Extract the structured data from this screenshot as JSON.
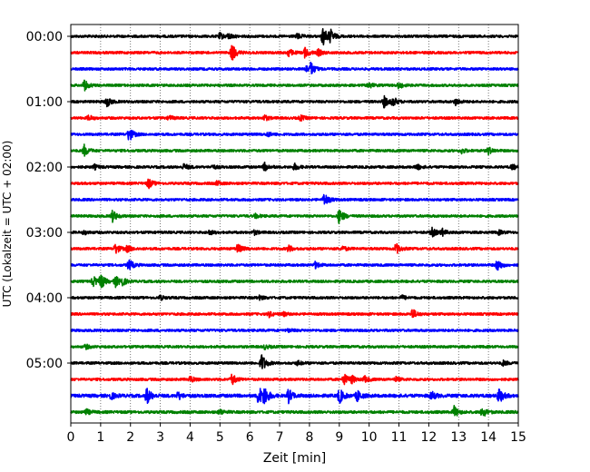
{
  "chart_data": {
    "type": "line",
    "title": "",
    "xlabel": "Zeit  [min]",
    "ylabel": "UTC (Lokalzeit = UTC + 02:00)",
    "xlim": [
      0,
      15
    ],
    "x_ticks": [
      0,
      1,
      2,
      3,
      4,
      5,
      6,
      7,
      8,
      9,
      10,
      11,
      12,
      13,
      14,
      15
    ],
    "x_tick_labels": [
      "0",
      "1",
      "2",
      "3",
      "4",
      "5",
      "6",
      "7",
      "8",
      "9",
      "10",
      "11",
      "12",
      "13",
      "14",
      "15"
    ],
    "y_tick_labels": [
      "00:00",
      "01:00",
      "02:00",
      "03:00",
      "04:00",
      "05:00"
    ],
    "y_tick_rows": [
      0,
      4,
      8,
      12,
      16,
      20
    ],
    "grid": "vertical dotted at each minute",
    "trace_colors": [
      "#000000",
      "#ff0000",
      "#0000ff",
      "#008000"
    ],
    "rows": [
      {
        "start": "00:00",
        "amp": 1.0,
        "events": [
          [
            5.0,
            0.6
          ],
          [
            5.3,
            0.5
          ],
          [
            7.6,
            0.5
          ],
          [
            8.45,
            1.9
          ],
          [
            8.7,
            1.2
          ]
        ]
      },
      {
        "start": "00:15",
        "amp": 1.0,
        "events": [
          [
            5.4,
            1.7
          ],
          [
            7.3,
            0.8
          ],
          [
            7.85,
            1.0
          ],
          [
            8.3,
            0.6
          ]
        ]
      },
      {
        "start": "00:30",
        "amp": 1.0,
        "events": [
          [
            7.9,
            0.6
          ],
          [
            8.05,
            1.1
          ]
        ]
      },
      {
        "start": "00:45",
        "amp": 1.0,
        "events": [
          [
            0.45,
            1.0
          ],
          [
            10.0,
            0.5
          ],
          [
            11.0,
            0.6
          ]
        ]
      },
      {
        "start": "01:00",
        "amp": 1.0,
        "events": [
          [
            1.2,
            1.0
          ],
          [
            10.5,
            1.1
          ],
          [
            10.8,
            0.9
          ],
          [
            12.9,
            0.6
          ]
        ]
      },
      {
        "start": "01:15",
        "amp": 1.0,
        "events": [
          [
            0.6,
            0.5
          ],
          [
            3.3,
            0.4
          ],
          [
            6.5,
            0.5
          ],
          [
            7.7,
            0.5
          ]
        ]
      },
      {
        "start": "01:30",
        "amp": 1.0,
        "events": [
          [
            1.95,
            1.4
          ],
          [
            6.6,
            0.4
          ]
        ]
      },
      {
        "start": "01:45",
        "amp": 1.0,
        "events": [
          [
            0.45,
            1.1
          ],
          [
            13.1,
            0.5
          ],
          [
            14.0,
            0.7
          ]
        ]
      },
      {
        "start": "02:00",
        "amp": 1.0,
        "events": [
          [
            0.8,
            0.4
          ],
          [
            3.8,
            0.6
          ],
          [
            4.75,
            0.4
          ],
          [
            6.5,
            0.8
          ],
          [
            7.5,
            0.6
          ],
          [
            11.6,
            0.5
          ],
          [
            14.8,
            0.5
          ]
        ]
      },
      {
        "start": "02:15",
        "amp": 1.0,
        "events": [
          [
            2.6,
            1.0
          ],
          [
            4.9,
            0.4
          ]
        ]
      },
      {
        "start": "02:30",
        "amp": 1.0,
        "events": [
          [
            8.5,
            1.3
          ]
        ]
      },
      {
        "start": "02:45",
        "amp": 1.0,
        "events": [
          [
            1.4,
            1.1
          ],
          [
            6.2,
            0.4
          ],
          [
            9.0,
            1.5
          ]
        ]
      },
      {
        "start": "03:00",
        "amp": 1.0,
        "events": [
          [
            0.45,
            0.4
          ],
          [
            4.65,
            0.4
          ],
          [
            6.15,
            0.4
          ],
          [
            12.1,
            0.9
          ],
          [
            12.45,
            0.6
          ],
          [
            14.35,
            0.4
          ]
        ]
      },
      {
        "start": "03:15",
        "amp": 1.0,
        "events": [
          [
            1.5,
            1.0
          ],
          [
            1.9,
            0.6
          ],
          [
            5.6,
            0.9
          ],
          [
            7.3,
            0.6
          ],
          [
            9.1,
            0.5
          ],
          [
            10.9,
            1.1
          ]
        ]
      },
      {
        "start": "03:30",
        "amp": 1.0,
        "events": [
          [
            1.95,
            1.1
          ],
          [
            8.2,
            0.6
          ],
          [
            14.3,
            1.2
          ]
        ]
      },
      {
        "start": "03:45",
        "amp": 1.0,
        "events": [
          [
            0.75,
            1.0
          ],
          [
            1.0,
            1.4
          ],
          [
            1.5,
            1.0
          ],
          [
            1.7,
            0.8
          ]
        ]
      },
      {
        "start": "04:00",
        "amp": 1.0,
        "events": [
          [
            3.0,
            0.4
          ],
          [
            6.3,
            0.4
          ],
          [
            11.1,
            0.4
          ]
        ]
      },
      {
        "start": "04:15",
        "amp": 1.0,
        "events": [
          [
            6.65,
            0.5
          ],
          [
            7.1,
            0.4
          ],
          [
            11.45,
            1.0
          ]
        ]
      },
      {
        "start": "04:30",
        "amp": 1.0,
        "events": [
          [
            7.3,
            0.3
          ]
        ]
      },
      {
        "start": "04:45",
        "amp": 1.0,
        "events": [
          [
            0.5,
            0.4
          ],
          [
            6.5,
            0.4
          ]
        ]
      },
      {
        "start": "05:00",
        "amp": 1.0,
        "events": [
          [
            6.4,
            1.8
          ],
          [
            7.6,
            0.4
          ],
          [
            14.5,
            0.5
          ]
        ]
      },
      {
        "start": "05:15",
        "amp": 1.0,
        "events": [
          [
            4.0,
            0.6
          ],
          [
            5.4,
            1.1
          ],
          [
            9.15,
            1.2
          ],
          [
            9.4,
            0.7
          ],
          [
            9.85,
            0.6
          ],
          [
            10.9,
            0.4
          ]
        ]
      },
      {
        "start": "05:30",
        "amp": 1.3,
        "events": [
          [
            1.35,
            0.6
          ],
          [
            2.55,
            1.6
          ],
          [
            3.6,
            0.7
          ],
          [
            6.3,
            2.0
          ],
          [
            6.5,
            1.6
          ],
          [
            7.3,
            1.3
          ],
          [
            9.0,
            1.5
          ],
          [
            9.6,
            1.1
          ],
          [
            12.1,
            0.8
          ],
          [
            14.35,
            1.5
          ]
        ]
      },
      {
        "start": "05:45",
        "amp": 1.1,
        "events": [
          [
            0.5,
            0.6
          ],
          [
            5.0,
            0.5
          ],
          [
            12.85,
            1.1
          ],
          [
            13.8,
            1.0
          ]
        ]
      }
    ]
  }
}
